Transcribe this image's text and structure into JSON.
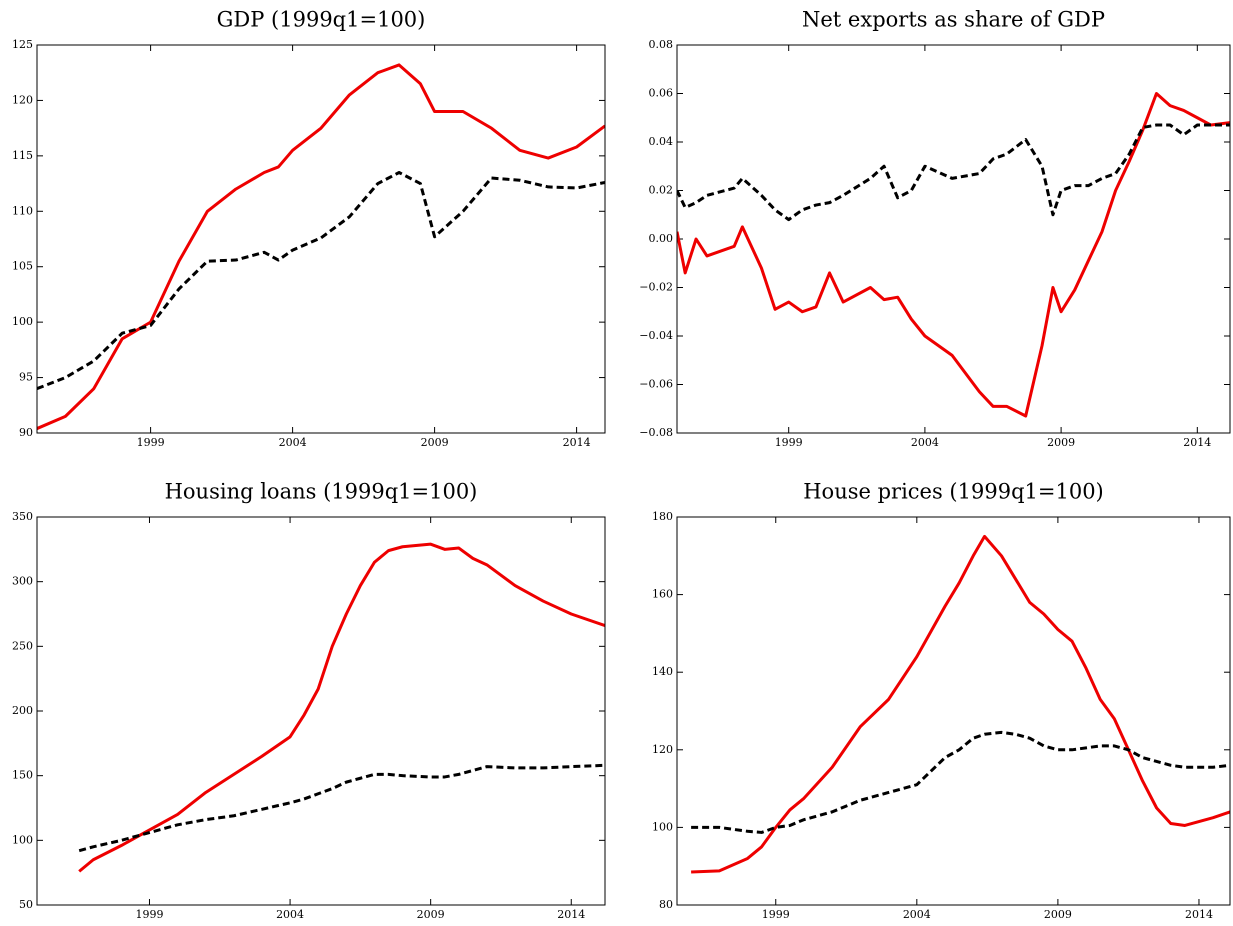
{
  "chart_data": [
    {
      "type": "line",
      "title": "GDP (1999q1=100)",
      "x": [
        1995,
        1996,
        1997,
        1998,
        1999,
        2000,
        2001,
        2002,
        2003,
        2003.5,
        2004,
        2005,
        2006,
        2007,
        2007.75,
        2008.5,
        2009,
        2010,
        2011,
        2012,
        2013,
        2014,
        2015
      ],
      "series": [
        {
          "color": "#ee0000",
          "linestyle": "solid",
          "values": [
            90.4,
            91.5,
            94,
            98.5,
            100,
            105.5,
            110,
            112,
            113.5,
            114,
            115.5,
            117.5,
            120.5,
            122.5,
            123.2,
            121.5,
            119,
            119,
            117.5,
            115.5,
            114.8,
            115.8,
            117.7
          ]
        },
        {
          "color": "#000000",
          "linestyle": "dashed",
          "values": [
            94,
            95,
            96.5,
            99,
            99.7,
            103,
            105.5,
            105.6,
            106.3,
            105.6,
            106.5,
            107.6,
            109.5,
            112.5,
            113.5,
            112.5,
            107.7,
            110,
            113,
            112.8,
            112.2,
            112.1,
            112.6
          ]
        }
      ],
      "xlim": [
        1995,
        2015
      ],
      "xticks": [
        1999,
        2004,
        2009,
        2014
      ],
      "ylim": [
        90,
        125
      ],
      "yticks": [
        90,
        95,
        100,
        105,
        110,
        115,
        120,
        125
      ],
      "grid": false
    },
    {
      "type": "line",
      "title": "Net exports as share of GDP",
      "x": [
        1994.9,
        1995.2,
        1995.6,
        1996,
        1997,
        1997.3,
        1998,
        1998.5,
        1999,
        1999.5,
        2000,
        2000.5,
        2001,
        2002,
        2002.5,
        2003,
        2003.5,
        2004,
        2005,
        2006,
        2006.5,
        2007,
        2007.7,
        2008.3,
        2008.7,
        2009,
        2009.5,
        2010,
        2010.5,
        2011,
        2011.5,
        2012,
        2012.5,
        2013,
        2013.5,
        2014,
        2014.5,
        2015.2
      ],
      "series": [
        {
          "color": "#ee0000",
          "linestyle": "solid",
          "values": [
            0.003,
            -0.014,
            0,
            -0.007,
            -0.003,
            0.005,
            -0.012,
            -0.029,
            -0.026,
            -0.03,
            -0.028,
            -0.014,
            -0.026,
            -0.02,
            -0.025,
            -0.024,
            -0.033,
            -0.04,
            -0.048,
            -0.063,
            -0.069,
            -0.069,
            -0.073,
            -0.044,
            -0.02,
            -0.03,
            -0.021,
            -0.009,
            0.003,
            0.02,
            0.032,
            0.045,
            0.06,
            0.055,
            0.053,
            0.05,
            0.047,
            0.048
          ]
        },
        {
          "color": "#000000",
          "linestyle": "dashed",
          "values": [
            0.02,
            0.013,
            0.015,
            0.018,
            0.021,
            0.025,
            0.018,
            0.012,
            0.008,
            0.012,
            0.014,
            0.015,
            0.018,
            0.025,
            0.03,
            0.017,
            0.02,
            0.03,
            0.025,
            0.027,
            0.033,
            0.035,
            0.041,
            0.03,
            0.01,
            0.02,
            0.022,
            0.022,
            0.025,
            0.027,
            0.035,
            0.046,
            0.047,
            0.047,
            0.043,
            0.047,
            0.047,
            0.047
          ]
        }
      ],
      "xlim": [
        1994.9,
        2015.2
      ],
      "xticks": [
        1999,
        2004,
        2009,
        2014
      ],
      "ylim": [
        -0.08,
        0.08
      ],
      "yticks": [
        {
          "value": -0.08,
          "label": "−0.08"
        },
        {
          "value": -0.06,
          "label": "−0.06"
        },
        {
          "value": -0.04,
          "label": "−0.04"
        },
        {
          "value": -0.02,
          "label": "−0.02"
        },
        {
          "value": 0,
          "label": "0.00"
        },
        0.02,
        0.04,
        0.06,
        0.08
      ],
      "grid": false
    },
    {
      "type": "line",
      "title": "Housing loans (1999q1=100)",
      "x": [
        1996.5,
        1997,
        1998,
        1999,
        2000,
        2001,
        2002,
        2003,
        2004,
        2004.5,
        2005,
        2005.5,
        2006,
        2006.5,
        2007,
        2007.5,
        2008,
        2009,
        2009.5,
        2010,
        2010.5,
        2011,
        2012,
        2013,
        2014,
        2015.2
      ],
      "series": [
        {
          "color": "#ee0000",
          "linestyle": "solid",
          "values": [
            76,
            85,
            96,
            108,
            120,
            137,
            151,
            165,
            180,
            197,
            217,
            250,
            275,
            297,
            315,
            324,
            327,
            329,
            325,
            326,
            318,
            313,
            297,
            285,
            275,
            266
          ]
        },
        {
          "color": "#000000",
          "linestyle": "dashed",
          "values": [
            92,
            95,
            100,
            106,
            112,
            116,
            119,
            124,
            129,
            132,
            136,
            140,
            145,
            148,
            151,
            151,
            150,
            149,
            149,
            151,
            154,
            157,
            156,
            156,
            157,
            158
          ]
        }
      ],
      "xlim": [
        1995,
        2015.2
      ],
      "xticks": [
        1999,
        2004,
        2009,
        2014
      ],
      "ylim": [
        50,
        350
      ],
      "yticks": [
        50,
        100,
        150,
        200,
        250,
        300,
        350
      ],
      "grid": false
    },
    {
      "type": "line",
      "title": "House prices (1999q1=100)",
      "x": [
        1996,
        1997,
        1998,
        1998.5,
        1999,
        1999.5,
        2000,
        2001,
        2002,
        2003,
        2004,
        2005,
        2005.5,
        2006,
        2006.4,
        2007,
        2007.5,
        2008,
        2008.5,
        2009,
        2009.5,
        2010,
        2010.5,
        2011,
        2011.5,
        2012,
        2012.5,
        2013,
        2013.5,
        2014,
        2014.5,
        2015.1
      ],
      "series": [
        {
          "color": "#ee0000",
          "linestyle": "solid",
          "values": [
            88.5,
            88.8,
            92,
            95,
            100,
            104.5,
            107.5,
            115.5,
            126,
            133,
            144,
            157,
            163,
            170,
            175,
            170,
            164,
            158,
            155,
            151,
            148,
            141,
            133,
            128,
            120,
            112,
            105,
            101,
            100.5,
            101.5,
            102.5,
            104
          ]
        },
        {
          "color": "#000000",
          "linestyle": "dashed",
          "values": [
            100,
            100,
            99,
            98.7,
            100,
            100.5,
            102,
            104,
            107,
            109,
            111,
            118,
            120,
            123,
            124,
            124.5,
            124,
            123,
            121,
            120,
            120,
            120.5,
            121,
            121,
            120,
            118,
            117,
            116,
            115.5,
            115.5,
            115.5,
            116
          ]
        }
      ],
      "xlim": [
        1995.5,
        2015.1
      ],
      "xticks": [
        1999,
        2004,
        2009,
        2014
      ],
      "ylim": [
        80,
        180
      ],
      "yticks": [
        80,
        100,
        120,
        140,
        160,
        180
      ],
      "grid": false
    }
  ]
}
